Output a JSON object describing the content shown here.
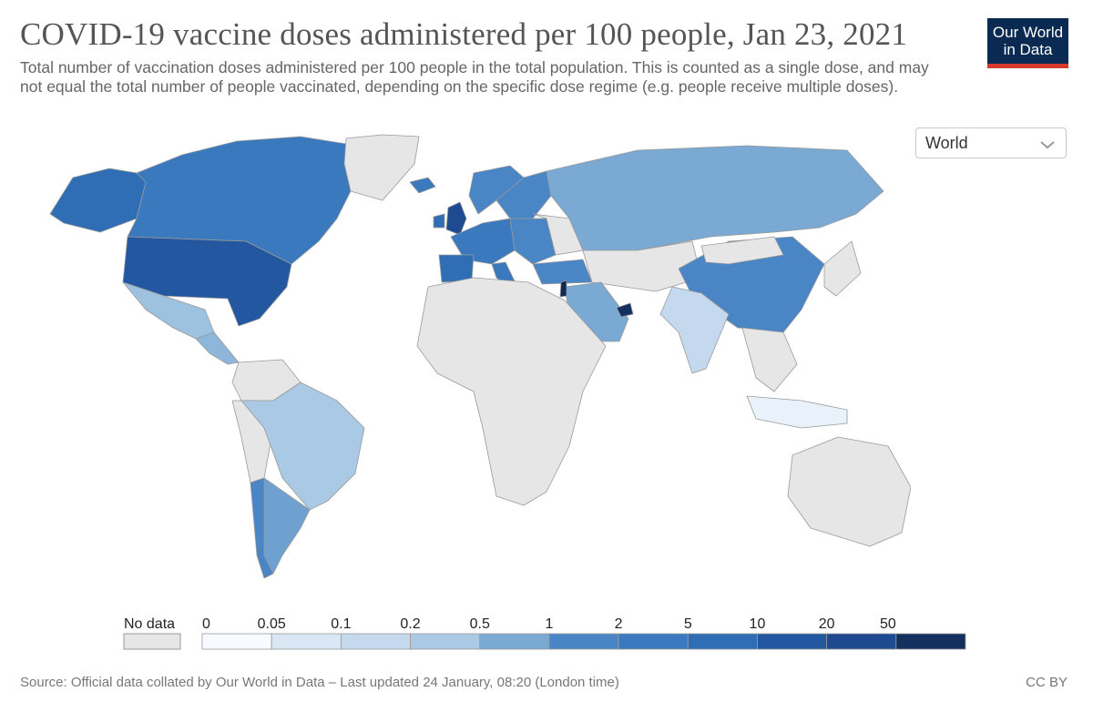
{
  "header": {
    "title": "COVID-19 vaccine doses administered per 100 people, Jan 23, 2021",
    "subtitle": "Total number of vaccination doses administered per 100 people in the total population. This is counted as a single dose, and may not equal the total number of people vaccinated, depending on the specific dose regime (e.g. people receive multiple doses)."
  },
  "logo": {
    "line1": "Our World",
    "line2": "in Data",
    "bg_color": "#0b2a52",
    "accent_color": "#d8392c"
  },
  "region_select": {
    "value": "World",
    "icon": "chevron-down-icon"
  },
  "map": {
    "no_data_color": "#e6e6e6",
    "border_color": "#9a9a9a",
    "regions": [
      {
        "name": "Alaska",
        "color": "#2f6db4"
      },
      {
        "name": "Canada",
        "color": "#3a79be"
      },
      {
        "name": "Greenland",
        "color": "#e6e6e6"
      },
      {
        "name": "United States",
        "color": "#2357a0"
      },
      {
        "name": "Mexico",
        "color": "#9dc2e0"
      },
      {
        "name": "Central America",
        "color": "#8db6da"
      },
      {
        "name": "Colombia/Venezuela",
        "color": "#e6e6e6"
      },
      {
        "name": "Peru/Bolivia",
        "color": "#e6e6e6"
      },
      {
        "name": "Brazil",
        "color": "#a9c9e4"
      },
      {
        "name": "Argentina",
        "color": "#6fa1d0"
      },
      {
        "name": "Chile",
        "color": "#4a85c5"
      },
      {
        "name": "Iceland",
        "color": "#3a79be"
      },
      {
        "name": "Norway",
        "color": "#4a85c5"
      },
      {
        "name": "Sweden/Finland",
        "color": "#4a85c5"
      },
      {
        "name": "United Kingdom",
        "color": "#1e4a91"
      },
      {
        "name": "Ireland",
        "color": "#2f6db4"
      },
      {
        "name": "Western Europe",
        "color": "#3a79be"
      },
      {
        "name": "Spain/Portugal",
        "color": "#2f6db4"
      },
      {
        "name": "Italy",
        "color": "#3a79be"
      },
      {
        "name": "Eastern Europe",
        "color": "#4a85c5"
      },
      {
        "name": "Ukraine/Belarus",
        "color": "#e6e6e6"
      },
      {
        "name": "Russia",
        "color": "#7aa9d4"
      },
      {
        "name": "Turkey",
        "color": "#4a85c5"
      },
      {
        "name": "Kazakhstan/Central Asia",
        "color": "#e6e6e6"
      },
      {
        "name": "China",
        "color": "#4a85c5"
      },
      {
        "name": "Mongolia",
        "color": "#e6e6e6"
      },
      {
        "name": "India",
        "color": "#c4d9ee"
      },
      {
        "name": "Saudi Arabia",
        "color": "#7aa9d4"
      },
      {
        "name": "UAE",
        "color": "#14305f"
      },
      {
        "name": "Israel",
        "color": "#0e2a55"
      },
      {
        "name": "Africa",
        "color": "#e6e6e6"
      },
      {
        "name": "Southeast Asia",
        "color": "#e6e6e6"
      },
      {
        "name": "Indonesia",
        "color": "#e9f2fa"
      },
      {
        "name": "Japan/Korea",
        "color": "#e6e6e6"
      },
      {
        "name": "Australia",
        "color": "#e6e6e6"
      },
      {
        "name": "New Zealand",
        "color": "#e6e6e6"
      }
    ]
  },
  "legend": {
    "no_data_label": "No data",
    "no_data_color": "#e6e6e6",
    "breakpoints": [
      "0",
      "0.05",
      "0.1",
      "0.2",
      "0.5",
      "1",
      "2",
      "5",
      "10",
      "20",
      "50"
    ],
    "colors": [
      "#f7fbff",
      "#d9e7f5",
      "#c4d9ee",
      "#a9c9e4",
      "#7aa9d4",
      "#4a85c5",
      "#3a79be",
      "#2f6db4",
      "#2357a0",
      "#1e4a91",
      "#14305f"
    ]
  },
  "footer": {
    "source": "Source: Official data collated by Our World in Data – Last updated 24 January, 08:20 (London time)",
    "license": "CC BY"
  }
}
